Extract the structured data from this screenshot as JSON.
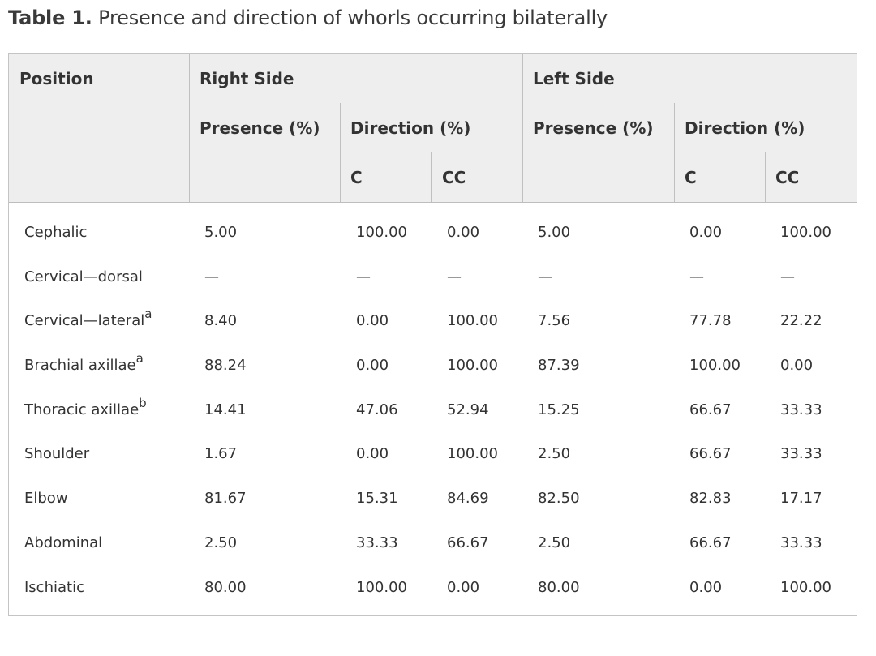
{
  "title": {
    "label": "Table 1.",
    "text": "Presence and direction of whorls occurring bilaterally"
  },
  "header": {
    "position": "Position",
    "right_side": "Right Side",
    "left_side": "Left Side",
    "right_presence": "Presence (%)",
    "right_direction": "Direction (%)",
    "left_presence": "Presence (%)",
    "left_direction": "Direction (%)",
    "right_c": "C",
    "right_cc": "CC",
    "left_c": "C",
    "left_cc": "CC"
  },
  "rows": [
    {
      "position": "Cephalic",
      "sup": "",
      "r_presence": "5.00",
      "r_c": "100.00",
      "r_cc": "0.00",
      "l_presence": "5.00",
      "l_c": "0.00",
      "l_cc": "100.00"
    },
    {
      "position": "Cervical—dorsal",
      "sup": "",
      "r_presence": "—",
      "r_c": "—",
      "r_cc": "—",
      "l_presence": "—",
      "l_c": "—",
      "l_cc": "—"
    },
    {
      "position": "Cervical—lateral",
      "sup": "a",
      "r_presence": "8.40",
      "r_c": "0.00",
      "r_cc": "100.00",
      "l_presence": "7.56",
      "l_c": "77.78",
      "l_cc": "22.22"
    },
    {
      "position": "Brachial axillae",
      "sup": "a",
      "r_presence": "88.24",
      "r_c": "0.00",
      "r_cc": "100.00",
      "l_presence": "87.39",
      "l_c": "100.00",
      "l_cc": "0.00"
    },
    {
      "position": "Thoracic axillae",
      "sup": "b",
      "r_presence": "14.41",
      "r_c": "47.06",
      "r_cc": "52.94",
      "l_presence": "15.25",
      "l_c": "66.67",
      "l_cc": "33.33"
    },
    {
      "position": "Shoulder",
      "sup": "",
      "r_presence": "1.67",
      "r_c": "0.00",
      "r_cc": "100.00",
      "l_presence": "2.50",
      "l_c": "66.67",
      "l_cc": "33.33"
    },
    {
      "position": "Elbow",
      "sup": "",
      "r_presence": "81.67",
      "r_c": "15.31",
      "r_cc": "84.69",
      "l_presence": "82.50",
      "l_c": "82.83",
      "l_cc": "17.17"
    },
    {
      "position": "Abdominal",
      "sup": "",
      "r_presence": "2.50",
      "r_c": "33.33",
      "r_cc": "66.67",
      "l_presence": "2.50",
      "l_c": "66.67",
      "l_cc": "33.33"
    },
    {
      "position": "Ischiatic",
      "sup": "",
      "r_presence": "80.00",
      "r_c": "100.00",
      "r_cc": "0.00",
      "l_presence": "80.00",
      "l_c": "0.00",
      "l_cc": "100.00"
    }
  ]
}
